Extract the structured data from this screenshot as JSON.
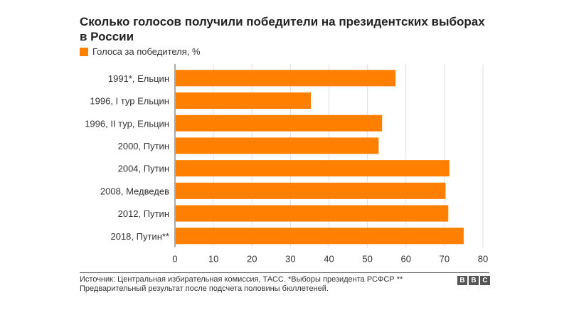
{
  "chart_data": {
    "type": "bar",
    "orientation": "horizontal",
    "title": "Сколько голосов получили победители на президентских выборах в России",
    "categories": [
      "1991*, Ельцин",
      "1996, I тур Ельцин",
      "1996, II тур, Ельцин",
      "2000, Путин",
      "2004, Путин",
      "2008, Медведев",
      "2012, Путин",
      "2018, Путин**"
    ],
    "series": [
      {
        "name": "Голоса за победителя, %",
        "values": [
          57.3,
          35.3,
          53.8,
          52.9,
          71.3,
          70.3,
          71.0,
          75.0
        ]
      }
    ],
    "xticks": [
      "0",
      "10",
      "20",
      "30",
      "40",
      "50",
      "60",
      "70",
      "80"
    ],
    "xlim": [
      0,
      80
    ],
    "grid": true,
    "legend_position": "top-left",
    "bar_color": "#ff7f00"
  },
  "footer": {
    "source": "Источник: Центральная избирательная комиссия, ТАСС. *Выборы президента РСФСР ** Предварительный результат после подсчета половины бюллетеней.",
    "logo": [
      "B",
      "B",
      "C"
    ]
  }
}
